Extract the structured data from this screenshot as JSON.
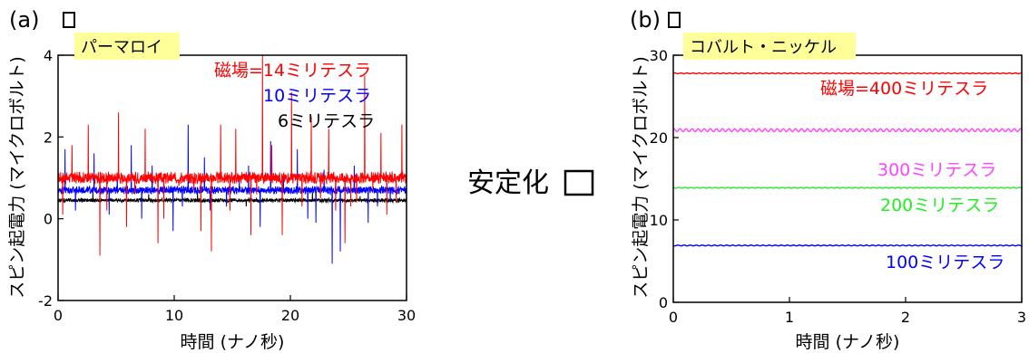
{
  "middle_text": "安定化",
  "chart_data": [
    {
      "type": "line",
      "panel": "(a)",
      "sample": "パーマロイ",
      "xlabel": "時間 (ナノ秒)",
      "ylabel": "スピン起電力 (マイクロボルト)",
      "xlim": [
        0,
        30
      ],
      "ylim": [
        -2,
        4
      ],
      "xticks": [
        "0",
        "10",
        "20",
        "30"
      ],
      "yticks": [
        "-2",
        "0",
        "2",
        "4"
      ],
      "series": [
        {
          "name": "磁場=14ミリテスラ",
          "color": "#ff0000",
          "baseline": 1.0,
          "noise": 0.12,
          "spikes": [
            [
              0.4,
              -0.9
            ],
            [
              1.2,
              0.8
            ],
            [
              2.6,
              1.3
            ],
            [
              3.6,
              -1.9
            ],
            [
              4.2,
              -0.8
            ],
            [
              5.2,
              1.6
            ],
            [
              5.9,
              -1.2
            ],
            [
              6.6,
              -0.4
            ],
            [
              7.5,
              1.2
            ],
            [
              8.6,
              -1.6
            ],
            [
              9.1,
              -1.0
            ],
            [
              10.4,
              -0.2
            ],
            [
              11.7,
              -0.3
            ],
            [
              12.3,
              -1.3
            ],
            [
              13.2,
              -1.8
            ],
            [
              14.0,
              1.3
            ],
            [
              14.8,
              -0.8
            ],
            [
              15.3,
              1.2
            ],
            [
              16.6,
              -1.4
            ],
            [
              17.1,
              -0.4
            ],
            [
              17.6,
              3.6
            ],
            [
              18.4,
              0.8
            ],
            [
              19.3,
              -1.4
            ],
            [
              20.1,
              2.1
            ],
            [
              21.0,
              -0.7
            ],
            [
              21.8,
              1.5
            ],
            [
              22.6,
              -0.5
            ],
            [
              23.3,
              1.2
            ],
            [
              23.9,
              -0.8
            ],
            [
              24.7,
              -1.6
            ],
            [
              25.2,
              -0.7
            ],
            [
              25.7,
              -0.6
            ],
            [
              26.4,
              2.5
            ],
            [
              27.1,
              -0.3
            ],
            [
              27.8,
              1.1
            ],
            [
              28.3,
              -0.9
            ],
            [
              29.1,
              -0.6
            ],
            [
              29.6,
              1.3
            ]
          ]
        },
        {
          "name": "10ミリテスラ",
          "color": "#0000ff",
          "baseline": 0.7,
          "noise": 0.08,
          "spikes": [
            [
              0.6,
              1.0
            ],
            [
              1.5,
              -0.5
            ],
            [
              3.1,
              0.9
            ],
            [
              4.4,
              -0.6
            ],
            [
              5.1,
              0.4
            ],
            [
              6.3,
              1.1
            ],
            [
              7.2,
              -0.7
            ],
            [
              8.1,
              0.6
            ],
            [
              9.9,
              -1.0
            ],
            [
              10.7,
              -0.4
            ],
            [
              11.2,
              1.6
            ],
            [
              12.6,
              0.8
            ],
            [
              13.1,
              -0.5
            ],
            [
              14.5,
              -0.4
            ],
            [
              15.6,
              0.3
            ],
            [
              16.4,
              0.6
            ],
            [
              17.4,
              -0.9
            ],
            [
              18.3,
              1.2
            ],
            [
              19.4,
              0.4
            ],
            [
              20.6,
              1.0
            ],
            [
              21.5,
              -0.7
            ],
            [
              22.2,
              -0.8
            ],
            [
              22.9,
              0.5
            ],
            [
              23.6,
              -1.8
            ],
            [
              24.3,
              -1.5
            ],
            [
              25.5,
              0.6
            ],
            [
              26.7,
              -0.8
            ],
            [
              27.5,
              -0.4
            ],
            [
              28.6,
              -0.3
            ]
          ]
        },
        {
          "name": "6ミリテスラ",
          "color": "#000000",
          "baseline": 0.45,
          "noise": 0.04,
          "spikes": [
            [
              3.0,
              0.2
            ],
            [
              7.8,
              0.15
            ],
            [
              12.0,
              0.2
            ],
            [
              16.2,
              -0.15
            ],
            [
              21.9,
              0.2
            ],
            [
              26.0,
              0.1
            ]
          ]
        }
      ]
    },
    {
      "type": "line",
      "panel": "(b)",
      "sample": "コバルト・ニッケル",
      "xlabel": "時間 (ナノ秒)",
      "ylabel": "スピン起電力 (マイクロボルト)",
      "xlim": [
        0,
        3
      ],
      "ylim": [
        0,
        30
      ],
      "xticks": [
        "0",
        "1",
        "2",
        "3"
      ],
      "yticks": [
        "0",
        "10",
        "20",
        "30"
      ],
      "series": [
        {
          "name": "磁場=400ミリテスラ",
          "color": "#ff0000",
          "value": 27.8
        },
        {
          "name": "300ミリテスラ",
          "color": "#ff44ff",
          "value": 20.9
        },
        {
          "name": "200ミリテスラ",
          "color": "#22ee22",
          "value": 13.9
        },
        {
          "name": "100ミリテスラ",
          "color": "#0000ff",
          "value": 6.9
        }
      ]
    }
  ]
}
